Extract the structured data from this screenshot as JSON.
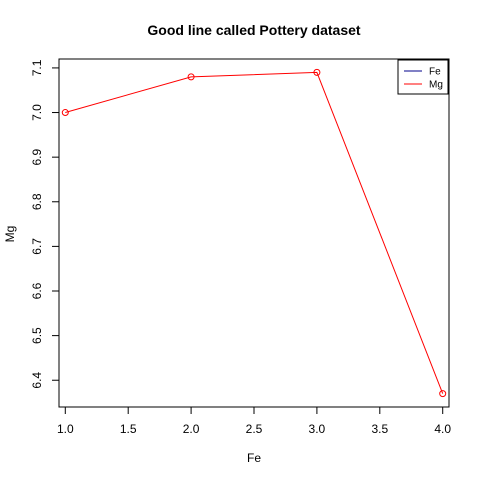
{
  "chart_data": {
    "type": "line",
    "title": "Good line called Pottery dataset",
    "xlabel": "Fe",
    "ylabel": "Mg",
    "xlim": [
      0.95,
      4.05
    ],
    "ylim": [
      6.34,
      7.12
    ],
    "x_ticks": [
      1.0,
      1.5,
      2.0,
      2.5,
      3.0,
      3.5,
      4.0
    ],
    "x_tick_labels": [
      "1.0",
      "1.5",
      "2.0",
      "2.5",
      "3.0",
      "3.5",
      "4.0"
    ],
    "y_ticks": [
      6.4,
      6.5,
      6.6,
      6.7,
      6.8,
      6.9,
      7.0,
      7.1
    ],
    "y_tick_labels": [
      "6.4",
      "6.5",
      "6.6",
      "6.7",
      "6.8",
      "6.9",
      "7.0",
      "7.1"
    ],
    "grid": false,
    "legend_position": "top-right",
    "legend": [
      {
        "name": "Fe",
        "color": "#00008b"
      },
      {
        "name": "Mg",
        "color": "#ff0000"
      }
    ],
    "series": [
      {
        "name": "Mg",
        "color": "#ff0000",
        "marker": "open-circle",
        "x": [
          1.0,
          2.0,
          3.0,
          4.0
        ],
        "y": [
          7.0,
          7.08,
          7.09,
          6.37
        ]
      }
    ]
  }
}
